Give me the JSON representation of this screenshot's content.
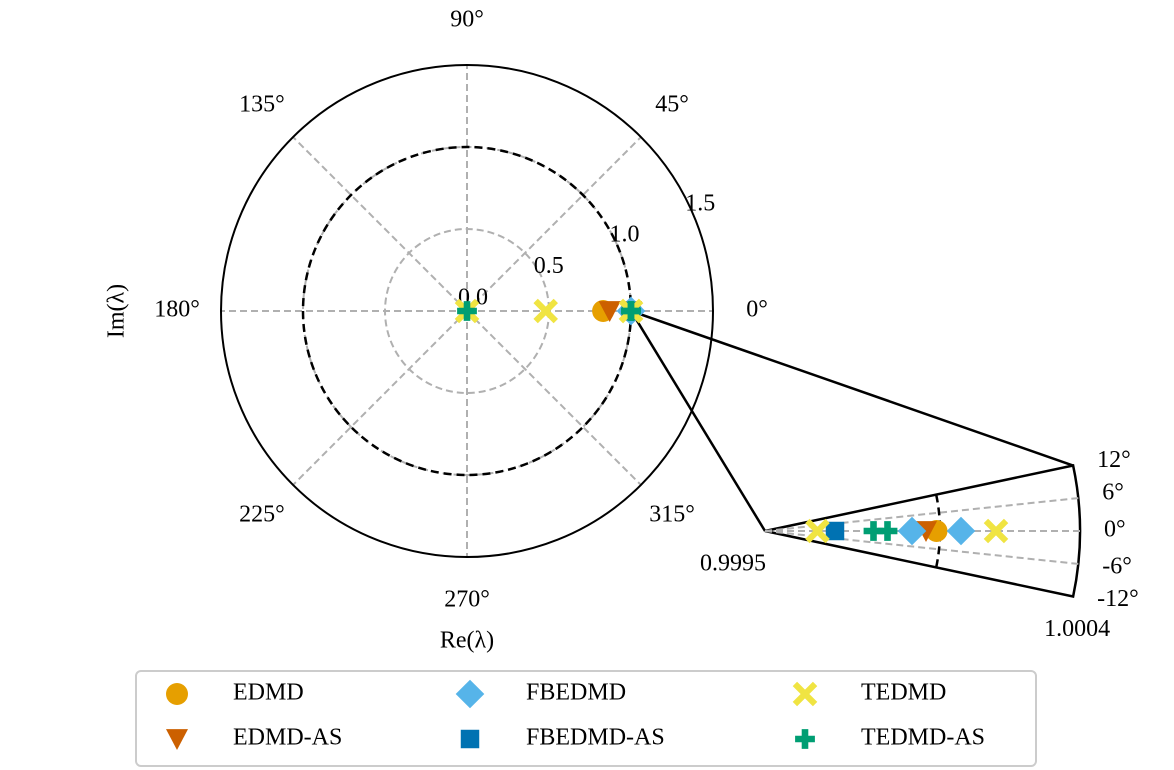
{
  "chart_data": {
    "type": "polar",
    "xlabel": "Re(λ)",
    "ylabel": "Im(λ)",
    "rlim": [
      0,
      1.5
    ],
    "rticks": [
      {
        "value": 0,
        "label": "0.0"
      },
      0.5,
      {
        "value": 1,
        "label": "1.0"
      },
      1.5
    ],
    "thetaticks": [
      {
        "value": 0,
        "label": "0°"
      },
      {
        "value": 45,
        "label": "45°"
      },
      {
        "value": 90,
        "label": "90°"
      },
      {
        "value": 135,
        "label": "135°"
      },
      {
        "value": 180,
        "label": "180°"
      },
      {
        "value": 225,
        "label": "225°"
      },
      {
        "value": 270,
        "label": "270°"
      },
      {
        "value": 315,
        "label": "315°"
      }
    ],
    "unit_circle": 1,
    "grid": true,
    "inset": {
      "rlim": [
        0.9995,
        1.0004
      ],
      "rticks": [
        0.9995,
        1.0004
      ],
      "thetalim": [
        -12,
        12
      ],
      "thetaticks": [
        {
          "value": 12,
          "label": "12°"
        },
        {
          "value": 6,
          "label": "6°"
        },
        {
          "value": 0,
          "label": "0°"
        },
        {
          "value": -6,
          "label": "-6°"
        },
        {
          "value": -12,
          "label": "-12°"
        }
      ]
    },
    "legend": "lower center",
    "series": [
      {
        "name": "EDMD",
        "color": "#e69f00",
        "marker": "circle",
        "r": [
          0.83,
          0.99999
        ],
        "theta": [
          0,
          0
        ]
      },
      {
        "name": "EDMD-AS",
        "color": "#cc6000",
        "marker": "triangle-down",
        "r": [
          0.87,
          0.99996
        ],
        "theta": [
          0,
          0
        ]
      },
      {
        "name": "FBEDMD",
        "color": "#56b4e9",
        "marker": "diamond",
        "r": [
          0.99992,
          1.00006
        ],
        "theta": [
          0,
          0
        ]
      },
      {
        "name": "FBEDMD-AS",
        "color": "#0072b2",
        "marker": "square",
        "r": [
          0.9997
        ],
        "theta": [
          0
        ]
      },
      {
        "name": "TEDMD",
        "color": "#f0e442",
        "marker": "x",
        "r": [
          0,
          0.48,
          0.99965,
          1.00016
        ],
        "theta": [
          0,
          0,
          0,
          0
        ]
      },
      {
        "name": "TEDMD-AS",
        "color": "#009e73",
        "marker": "plus",
        "r": [
          0,
          0.99981,
          0.99985
        ],
        "theta": [
          0,
          0,
          0
        ]
      }
    ]
  }
}
